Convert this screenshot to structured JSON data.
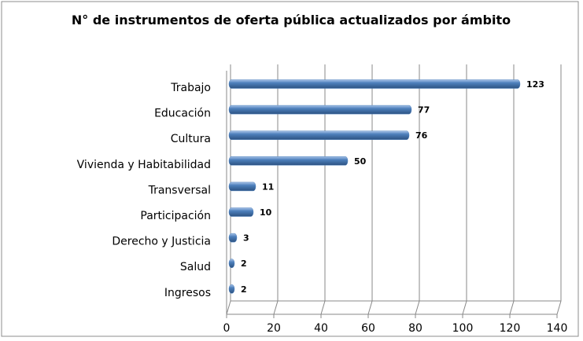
{
  "chart_data": {
    "type": "bar",
    "title": "N° de instrumentos de oferta pública actualizados por ámbito",
    "categories": [
      "Trabajo",
      "Educación",
      "Cultura",
      "Vivienda y Habitabilidad",
      "Transversal",
      "Participación",
      "Derecho y Justicia",
      "Salud",
      "Ingresos"
    ],
    "values": [
      123,
      77,
      76,
      50,
      11,
      10,
      3,
      2,
      2
    ],
    "color": "#4f81bd",
    "xlim": [
      0,
      140
    ],
    "xticks": [
      0,
      20,
      40,
      60,
      80,
      100,
      120,
      140
    ],
    "grid": true
  }
}
